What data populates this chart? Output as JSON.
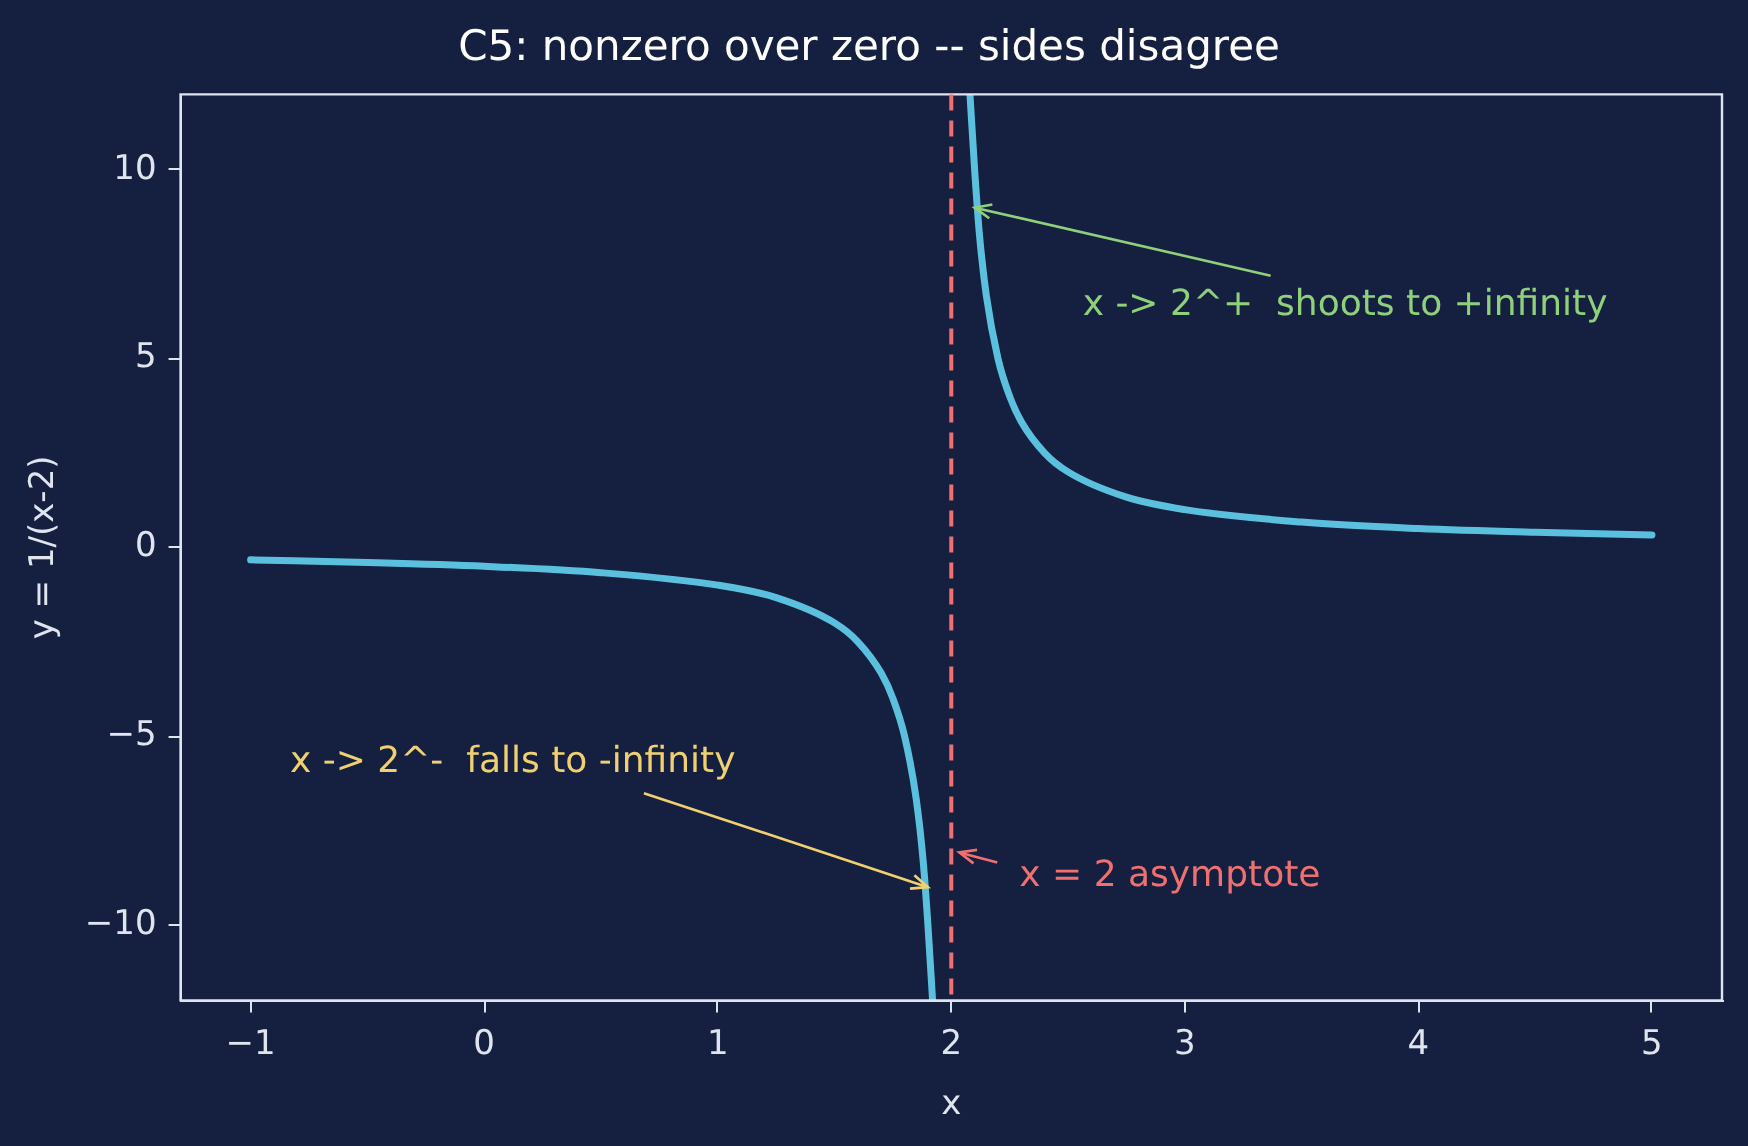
{
  "chart_data": {
    "type": "line",
    "title": "C5: nonzero over zero -- sides disagree",
    "xlabel": "x",
    "ylabel": "y = 1/(x-2)",
    "series": [
      {
        "color": "#5bc0de",
        "x": [
          -1,
          -0.5,
          0,
          0.5,
          1,
          1.25,
          1.5,
          1.6,
          1.7,
          1.75,
          1.8,
          1.85,
          1.88,
          1.9,
          1.92
        ],
        "values": [
          -0.33,
          -0.4,
          -0.5,
          -0.67,
          -1,
          -1.33,
          -2,
          -2.5,
          -3.33,
          -4,
          -5,
          -6.67,
          -8.33,
          -10,
          -12
        ]
      },
      {
        "color": "#5bc0de",
        "x": [
          2.08,
          2.1,
          2.12,
          2.15,
          2.2,
          2.25,
          2.3,
          2.4,
          2.5,
          2.75,
          3,
          3.5,
          4,
          4.5,
          5
        ],
        "values": [
          12,
          10,
          8.33,
          6.67,
          5,
          4,
          3.33,
          2.5,
          2,
          1.33,
          1,
          0.67,
          0.5,
          0.4,
          0.33
        ]
      }
    ],
    "xlim": [
      -1.3,
      5.3
    ],
    "ylim": [
      -12,
      12
    ],
    "xticks": [
      {
        "value": -1,
        "label": "−1"
      },
      0,
      1,
      2,
      3,
      4,
      5
    ],
    "yticks": [
      {
        "value": -10,
        "label": "−10"
      },
      {
        "value": -5,
        "label": "−5"
      },
      0,
      5,
      10
    ],
    "ref_lines": [
      {
        "axis": "x",
        "value": 2,
        "label": "x = 2 asymptote",
        "color": "#f07070",
        "line_style": "dashed"
      }
    ],
    "annotations": [
      {
        "text": "x -> 2^+  shoots to +infinity",
        "x": 2.1,
        "y": 9
      },
      {
        "text": "x -> 2^-  falls to -infinity",
        "x": 1.9,
        "y": -9
      }
    ],
    "grid": false,
    "legend": false,
    "marker": "none",
    "line_style": "solid"
  }
}
